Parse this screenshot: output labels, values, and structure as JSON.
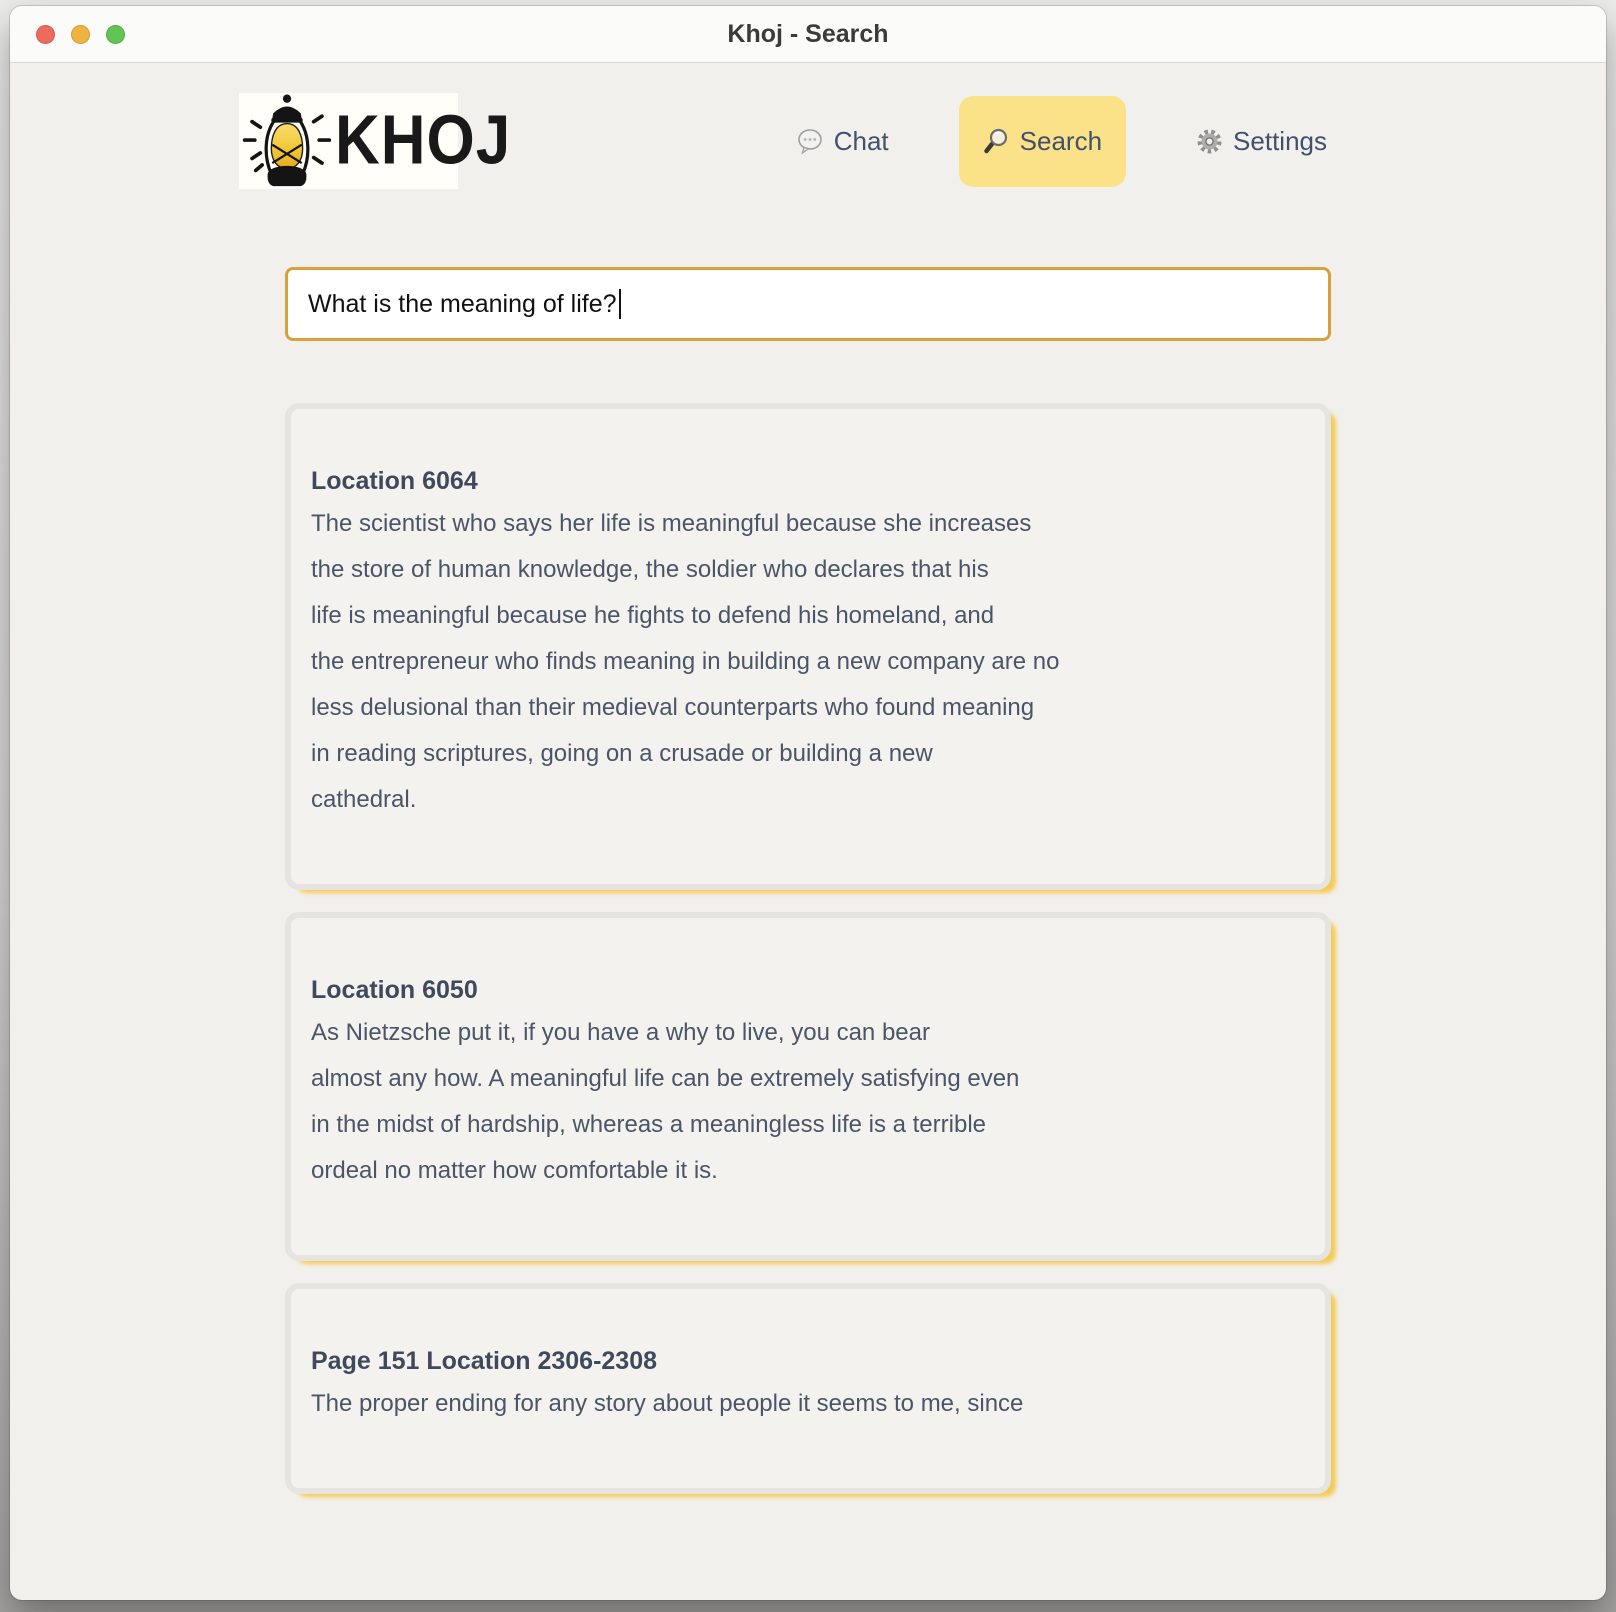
{
  "window": {
    "title": "Khoj - Search"
  },
  "titlebar": {
    "close_color": "#ed6a5e",
    "minimize_color": "#f0b340",
    "zoom_color": "#61c454"
  },
  "brand": {
    "logo_text": "KHOJ"
  },
  "nav": {
    "items": [
      {
        "id": "chat",
        "label": "Chat",
        "icon": "chat-bubble-icon",
        "active": false
      },
      {
        "id": "search",
        "label": "Search",
        "icon": "magnifier-icon",
        "active": true
      },
      {
        "id": "settings",
        "label": "Settings",
        "icon": "gear-icon",
        "active": false
      }
    ]
  },
  "search": {
    "value": "What is the meaning of life?"
  },
  "results": [
    {
      "heading": "Location 6064",
      "lines": [
        "The scientist who says her life is meaningful because she increases",
        "the store of human knowledge, the soldier who declares that his",
        "life is meaningful because he fights to defend his homeland, and",
        "the entrepreneur who finds meaning in building a new company are no",
        "less delusional than their medieval counterparts who found meaning",
        "in reading scriptures, going on a crusade or building a new",
        "cathedral."
      ]
    },
    {
      "heading": "Location 6050",
      "lines": [
        "As Nietzsche put it, if you have a why to live, you can bear",
        "almost any how. A meaningful life can be extremely satisfying even",
        "in the midst of hardship, whereas a meaningless life is a terrible",
        "ordeal no matter how comfortable it is."
      ]
    },
    {
      "heading": "Page 151 Location 2306-2308",
      "lines": [
        "The proper ending for any story about people it seems to me, since"
      ]
    }
  ],
  "colors": {
    "page_bg": "#f2f0ed",
    "accent_yellow": "#fbe289",
    "input_border": "#d8a13c",
    "card_bg": "#f4f2ef",
    "card_border": "#e5e4e1",
    "card_shadow": "#f3cb55",
    "heading_text": "#3e4a5c",
    "body_text": "#4a5568"
  }
}
